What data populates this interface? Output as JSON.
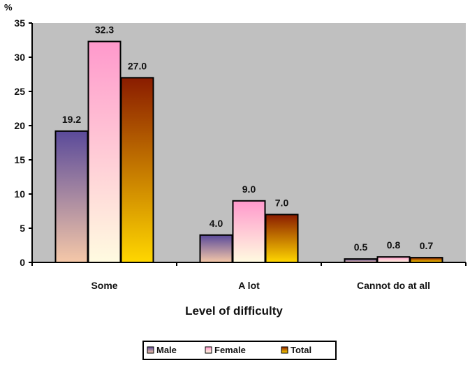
{
  "chart_data": {
    "type": "bar",
    "ylabel": "%",
    "xlabel": "Level of difficulty",
    "ylim": [
      0,
      35
    ],
    "yticks": [
      0,
      5,
      10,
      15,
      20,
      25,
      30,
      35
    ],
    "categories": [
      "Some",
      "A lot",
      "Cannot do at all"
    ],
    "series": [
      {
        "name": "Male",
        "values": [
          19.2,
          4.0,
          0.5
        ],
        "value_labels": [
          "19.2",
          "4.0",
          "0.5"
        ]
      },
      {
        "name": "Female",
        "values": [
          32.3,
          9.0,
          0.8
        ],
        "value_labels": [
          "32.3",
          "9.0",
          "0.8"
        ]
      },
      {
        "name": "Total",
        "values": [
          27.0,
          7.0,
          0.7
        ],
        "value_labels": [
          "27.0",
          "7.0",
          "0.7"
        ]
      }
    ],
    "grid": false,
    "plot_background": "#c0c0c0",
    "legend_position": "bottom",
    "colors": {
      "Male": [
        "#5a4a9a",
        "#f5c8a8"
      ],
      "Female": [
        "#ff99cc",
        "#fffbe0"
      ],
      "Total": [
        "#8a1c00",
        "#ffd700"
      ]
    }
  }
}
